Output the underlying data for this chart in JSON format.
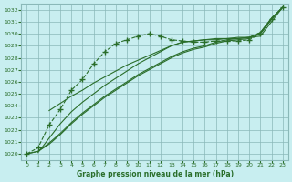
{
  "title": "Graphe pression niveau de la mer (hPa)",
  "bg_color": "#c8eef0",
  "grid_color": "#8ab8b8",
  "line_color": "#2a6e2a",
  "xlim": [
    -0.5,
    23.5
  ],
  "ylim": [
    1019.5,
    1032.5
  ],
  "xticks": [
    0,
    1,
    2,
    3,
    4,
    5,
    6,
    7,
    8,
    9,
    10,
    11,
    12,
    13,
    14,
    15,
    16,
    17,
    18,
    19,
    20,
    21,
    22,
    23
  ],
  "yticks": [
    1020,
    1021,
    1022,
    1023,
    1024,
    1025,
    1026,
    1027,
    1028,
    1029,
    1030,
    1031,
    1032
  ],
  "series_dotted": {
    "x": [
      0,
      1,
      2,
      3,
      4,
      5,
      6,
      7,
      8,
      9,
      10,
      11,
      12,
      13,
      14,
      15,
      16,
      17,
      18,
      19,
      20,
      21,
      22,
      23
    ],
    "y": [
      1020.0,
      1020.5,
      1022.4,
      1023.7,
      1025.3,
      1026.2,
      1027.5,
      1028.5,
      1029.2,
      1029.5,
      1029.8,
      1030.0,
      1029.8,
      1029.5,
      1029.4,
      1029.3,
      1029.3,
      1029.4,
      1029.4,
      1029.4,
      1029.5,
      1030.0,
      1031.2,
      1032.2
    ]
  },
  "series_solid1": {
    "x": [
      0,
      1,
      2,
      3,
      4,
      5,
      6,
      7,
      8,
      9,
      10,
      11,
      12,
      13,
      14,
      15,
      16,
      17,
      18,
      19,
      20,
      21,
      22,
      23
    ],
    "y": [
      1020.0,
      1020.2,
      1020.8,
      1021.6,
      1022.5,
      1023.3,
      1024.0,
      1024.7,
      1025.3,
      1025.9,
      1026.5,
      1027.0,
      1027.5,
      1028.0,
      1028.4,
      1028.7,
      1028.9,
      1029.2,
      1029.4,
      1029.5,
      1029.6,
      1030.0,
      1031.2,
      1032.2
    ]
  },
  "series_solid2": {
    "x": [
      0,
      1,
      2,
      3,
      4,
      5,
      6,
      7,
      8,
      9,
      10,
      11,
      12,
      13,
      14,
      15,
      16,
      17,
      18,
      19,
      20,
      21,
      22,
      23
    ],
    "y": [
      1020.0,
      1020.2,
      1020.9,
      1021.7,
      1022.6,
      1023.4,
      1024.1,
      1024.8,
      1025.4,
      1026.0,
      1026.6,
      1027.1,
      1027.6,
      1028.1,
      1028.5,
      1028.8,
      1029.0,
      1029.3,
      1029.5,
      1029.6,
      1029.7,
      1030.1,
      1031.3,
      1032.2
    ]
  },
  "series_solid3": {
    "x": [
      1,
      2,
      3,
      4,
      5,
      6,
      7,
      8,
      9,
      10,
      11,
      12,
      13,
      14,
      15,
      16,
      17,
      18,
      19,
      20,
      21,
      22,
      23
    ],
    "y": [
      1020.1,
      1021.3,
      1022.5,
      1023.5,
      1024.3,
      1025.0,
      1025.7,
      1026.3,
      1026.9,
      1027.5,
      1028.0,
      1028.5,
      1029.0,
      1029.3,
      1029.4,
      1029.5,
      1029.5,
      1029.6,
      1029.6,
      1029.7,
      1030.1,
      1031.3,
      1032.2
    ]
  },
  "series_solid4": {
    "x": [
      2,
      3,
      4,
      5,
      6,
      7,
      8,
      9,
      10,
      11,
      12,
      13,
      14,
      15,
      16,
      17,
      18,
      19,
      20,
      21,
      22,
      23
    ],
    "y": [
      1023.6,
      1024.2,
      1024.8,
      1025.3,
      1025.9,
      1026.4,
      1026.9,
      1027.4,
      1027.8,
      1028.2,
      1028.6,
      1029.0,
      1029.3,
      1029.4,
      1029.5,
      1029.6,
      1029.6,
      1029.7,
      1029.7,
      1029.8,
      1031.0,
      1032.2
    ]
  }
}
